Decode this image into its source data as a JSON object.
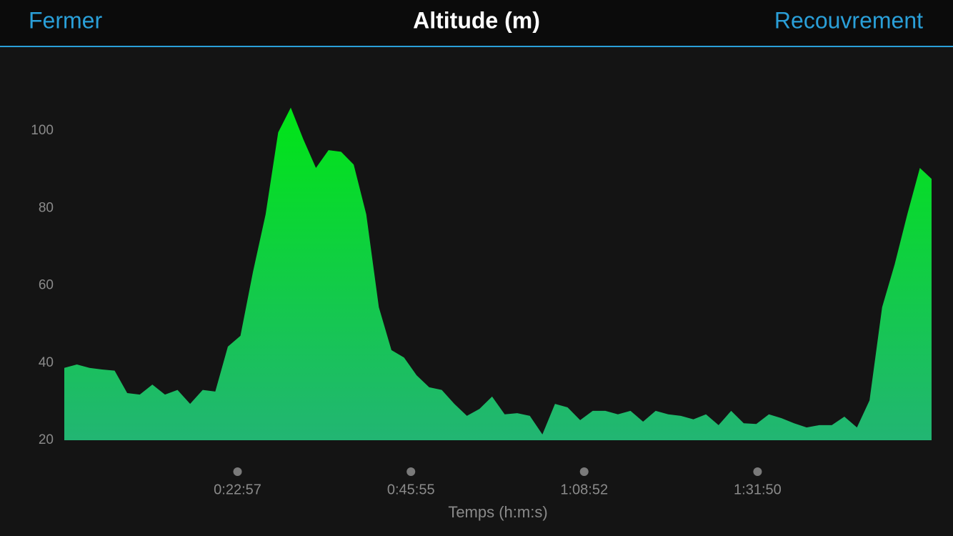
{
  "header": {
    "left_button": "Fermer",
    "title": "Altitude (m)",
    "right_button": "Recouvrement"
  },
  "chart_data": {
    "type": "area",
    "x_label": "Temps (h:m:s)",
    "x": [
      0,
      100,
      200,
      300,
      400,
      500,
      600,
      700,
      800,
      900,
      1000,
      1100,
      1200,
      1300,
      1400,
      1500,
      1600,
      1700,
      1800,
      1900,
      2000,
      2100,
      2200,
      2300,
      2400,
      2500,
      2600,
      2700,
      2800,
      2900,
      3000,
      3100,
      3200,
      3300,
      3400,
      3500,
      3600,
      3700,
      3800,
      3900,
      4000,
      4100,
      4200,
      4300,
      4400,
      4500,
      4600,
      4700,
      4800,
      4900,
      5000,
      5100,
      5200,
      5300,
      5400,
      5500,
      5600,
      5700,
      5800,
      5900,
      6000,
      6100,
      6200,
      6300,
      6400,
      6500,
      6600,
      6700,
      6800,
      6893
    ],
    "values": [
      38.7,
      39.6,
      38.7,
      38.3,
      38,
      32.2,
      31.8,
      34.4,
      31.8,
      33,
      29.4,
      33,
      32.6,
      44.2,
      47,
      63.6,
      78.4,
      99.6,
      106,
      97.8,
      90.4,
      95,
      94.6,
      91.3,
      78.4,
      54.4,
      43.3,
      41.4,
      36.8,
      33.7,
      33,
      29.4,
      26.3,
      28.1,
      31.3,
      26.7,
      27,
      26.3,
      21.5,
      29.4,
      28.5,
      25.2,
      27.6,
      27.6,
      26.7,
      27.6,
      24.8,
      27.6,
      26.7,
      26.3,
      25.4,
      26.7,
      23.9,
      27.6,
      24.4,
      24.2,
      26.7,
      25.7,
      24.4,
      23.3,
      23.9,
      23.9,
      26.1,
      23.3,
      30.3,
      54.4,
      65.5,
      78.4,
      90.4,
      87.6
    ],
    "colors": [
      "#00e516",
      "#22b573"
    ],
    "xlim": [
      0,
      6893
    ],
    "xticks": [
      {
        "value": 1377,
        "label": "0:22:57"
      },
      {
        "value": 2755,
        "label": "0:45:55"
      },
      {
        "value": 4132,
        "label": "1:08:52"
      },
      {
        "value": 5510,
        "label": "1:31:50"
      }
    ],
    "ylim": [
      20,
      110
    ],
    "yticks": [
      20,
      40,
      60,
      80,
      100
    ],
    "grid": false
  }
}
